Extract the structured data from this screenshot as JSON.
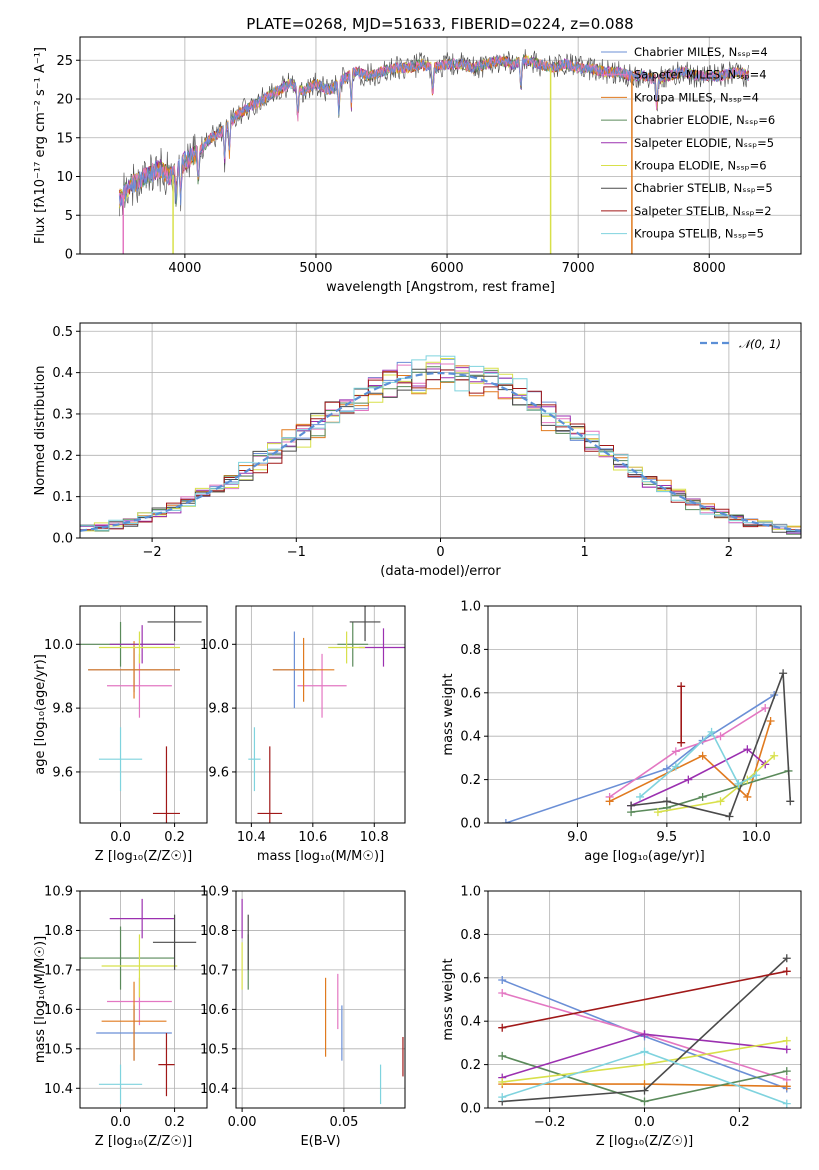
{
  "figure": {
    "title": "PLATE=0268, MJD=51633, FIBERID=0224, z=0.088"
  },
  "colors": {
    "chabrier_miles": "#6b8fd6",
    "salpeter_miles": "#e377c2",
    "kroupa_miles": "#e07a1f",
    "chabrier_elodie": "#5a8a5a",
    "salpeter_elodie": "#9b30b0",
    "kroupa_elodie": "#d8e04a",
    "chabrier_stelib": "#4a4a4a",
    "salpeter_stelib": "#a01818",
    "kroupa_stelib": "#7fd3de",
    "normal": "#5b8fd6"
  },
  "chart_data": [
    {
      "id": "spectrum",
      "type": "line",
      "xlabel": "wavelength [Angstrom, rest frame]",
      "ylabel": "Flux [fλ10⁻¹⁷ erg cm⁻² s⁻¹ A⁻¹]",
      "xlim": [
        3200,
        8700
      ],
      "ylim": [
        0,
        28
      ],
      "xticks": [
        "4000",
        "5000",
        "6000",
        "7000",
        "8000"
      ],
      "xtick_values": [
        4000,
        5000,
        6000,
        7000,
        8000
      ],
      "yticks": [
        "0",
        "5",
        "10",
        "15",
        "20",
        "25"
      ],
      "ytick_values": [
        0,
        5,
        10,
        15,
        20,
        25
      ],
      "legend_position": "top-right",
      "legend": [
        "Chabrier MILES, Nₛₛₚ=4",
        "Salpeter MILES, Nₛₛₚ=4",
        "Kroupa MILES, Nₛₛₚ=4",
        "Chabrier ELODIE, Nₛₛₚ=6",
        "Salpeter ELODIE, Nₛₛₚ=5",
        "Kroupa ELODIE, Nₛₛₚ=6",
        "Chabrier STELIB, Nₛₛₚ=5",
        "Salpeter STELIB, Nₛₛₚ=2",
        "Kroupa STELIB, Nₛₛₚ=5"
      ],
      "continuum": [
        [
          3500,
          7
        ],
        [
          3600,
          9
        ],
        [
          3700,
          10
        ],
        [
          3800,
          11
        ],
        [
          3900,
          10
        ],
        [
          4000,
          12
        ],
        [
          4100,
          13
        ],
        [
          4200,
          15
        ],
        [
          4300,
          16
        ],
        [
          4400,
          18
        ],
        [
          4500,
          19
        ],
        [
          4600,
          20
        ],
        [
          4700,
          21
        ],
        [
          4800,
          22
        ],
        [
          4900,
          21
        ],
        [
          5000,
          22
        ],
        [
          5100,
          21
        ],
        [
          5200,
          22.5
        ],
        [
          5300,
          23.5
        ],
        [
          5400,
          23
        ],
        [
          5500,
          23.5
        ],
        [
          5600,
          24
        ],
        [
          5700,
          24
        ],
        [
          5800,
          24.5
        ],
        [
          5900,
          24
        ],
        [
          6000,
          24.5
        ],
        [
          6100,
          24.5
        ],
        [
          6200,
          24
        ],
        [
          6300,
          24.5
        ],
        [
          6400,
          25
        ],
        [
          6500,
          24.5
        ],
        [
          6600,
          25
        ],
        [
          6700,
          24.5
        ],
        [
          6800,
          24
        ],
        [
          6900,
          24.5
        ],
        [
          7000,
          24
        ],
        [
          7100,
          24
        ],
        [
          7200,
          23.5
        ],
        [
          7300,
          23.5
        ],
        [
          7400,
          23
        ],
        [
          7500,
          23
        ],
        [
          7600,
          22.5
        ],
        [
          7700,
          23
        ],
        [
          7800,
          23.5
        ],
        [
          7900,
          23
        ],
        [
          8000,
          23
        ],
        [
          8100,
          23
        ],
        [
          8200,
          23.5
        ],
        [
          8300,
          23
        ]
      ],
      "spikes": [
        {
          "x": 3530,
          "color": "salpeter_miles"
        },
        {
          "x": 3910,
          "color": "kroupa_elodie"
        },
        {
          "x": 6790,
          "color": "kroupa_elodie"
        },
        {
          "x": 7410,
          "color": "kroupa_miles"
        }
      ]
    },
    {
      "id": "residuals",
      "type": "histogram",
      "xlabel": "(data-model)/error",
      "ylabel": "Normed distribution",
      "xlim": [
        -2.5,
        2.5
      ],
      "ylim": [
        0,
        0.52
      ],
      "xticks": [
        "−2",
        "−1",
        "0",
        "1",
        "2"
      ],
      "xtick_values": [
        -2,
        -1,
        0,
        1,
        2
      ],
      "yticks": [
        "0.0",
        "0.1",
        "0.2",
        "0.3",
        "0.4",
        "0.5"
      ],
      "ytick_values": [
        0,
        0.1,
        0.2,
        0.3,
        0.4,
        0.5
      ],
      "legend_position": "top-right",
      "legend": [
        "𝒩(0, 1)"
      ],
      "bin_width": 0.1,
      "note": "nine step histograms approximating N(0,1) with ~10% noise"
    },
    {
      "id": "age-vs-Z",
      "type": "scatter",
      "xlabel": "Z [log₁₀(Z/Z☉)]",
      "ylabel": "age  [log₁₀(age/yr)]",
      "xlim": [
        -0.15,
        0.32
      ],
      "ylim": [
        9.44,
        10.12
      ],
      "xticks": [
        "0.0",
        "0.2"
      ],
      "xtick_values": [
        0.0,
        0.2
      ],
      "yticks": [
        "9.6",
        "9.8",
        "10.0"
      ],
      "ytick_values": [
        9.6,
        9.8,
        10.0
      ],
      "points": [
        {
          "model": "chabrier_miles",
          "x": 0.05,
          "y": 9.92,
          "xerr": 0.17,
          "yerr": 0.07
        },
        {
          "model": "salpeter_miles",
          "x": 0.07,
          "y": 9.87,
          "xerr": 0.12,
          "yerr": 0.1
        },
        {
          "model": "kroupa_miles",
          "x": 0.05,
          "y": 9.92,
          "xerr": 0.17,
          "yerr": 0.09
        },
        {
          "model": "chabrier_elodie",
          "x": 0.0,
          "y": 10.0,
          "xerr": 0.2,
          "yerr": 0.07
        },
        {
          "model": "salpeter_elodie",
          "x": 0.08,
          "y": 10.0,
          "xerr": 0.12,
          "yerr": 0.06
        },
        {
          "model": "kroupa_elodie",
          "x": 0.07,
          "y": 9.99,
          "xerr": 0.15,
          "yerr": 0.05
        },
        {
          "model": "chabrier_stelib",
          "x": 0.2,
          "y": 10.07,
          "xerr": 0.1,
          "yerr": 0.06
        },
        {
          "model": "salpeter_stelib",
          "x": 0.17,
          "y": 9.47,
          "xerr": 0.05,
          "yerr": 0.21
        },
        {
          "model": "kroupa_stelib",
          "x": 0.0,
          "y": 9.64,
          "xerr": 0.08,
          "yerr": 0.1
        }
      ]
    },
    {
      "id": "age-vs-mass",
      "type": "scatter",
      "xlabel": "mass [log₁₀(M/M☉)]",
      "ylabel": "",
      "xlim": [
        10.35,
        10.9
      ],
      "ylim": [
        9.44,
        10.12
      ],
      "xticks": [
        "10.4",
        "10.6",
        "10.8"
      ],
      "xtick_values": [
        10.4,
        10.6,
        10.8
      ],
      "yticks": [
        "9.6",
        "9.8",
        "10.0"
      ],
      "ytick_values": [
        9.6,
        9.8,
        10.0
      ],
      "points": [
        {
          "model": "chabrier_miles",
          "x": 10.54,
          "y": 9.92,
          "xerr": 0.07,
          "yerr": 0.12
        },
        {
          "model": "salpeter_miles",
          "x": 10.63,
          "y": 9.87,
          "xerr": 0.08,
          "yerr": 0.1
        },
        {
          "model": "kroupa_miles",
          "x": 10.57,
          "y": 9.92,
          "xerr": 0.1,
          "yerr": 0.1
        },
        {
          "model": "chabrier_elodie",
          "x": 10.73,
          "y": 10.0,
          "xerr": 0.05,
          "yerr": 0.07
        },
        {
          "model": "salpeter_elodie",
          "x": 10.83,
          "y": 9.99,
          "xerr": 0.08,
          "yerr": 0.06
        },
        {
          "model": "kroupa_elodie",
          "x": 10.71,
          "y": 9.99,
          "xerr": 0.06,
          "yerr": 0.05
        },
        {
          "model": "chabrier_stelib",
          "x": 10.77,
          "y": 10.07,
          "xerr": 0.05,
          "yerr": 0.06
        },
        {
          "model": "salpeter_stelib",
          "x": 10.46,
          "y": 9.47,
          "xerr": 0.04,
          "yerr": 0.21
        },
        {
          "model": "kroupa_stelib",
          "x": 10.41,
          "y": 9.64,
          "xerr": 0.02,
          "yerr": 0.1
        }
      ]
    },
    {
      "id": "mass-weight-vs-age",
      "type": "line",
      "xlabel": "age  [log₁₀(age/yr)]",
      "ylabel": "mass weight",
      "xlim": [
        8.5,
        10.25
      ],
      "ylim": [
        0,
        1
      ],
      "xticks": [
        "9.0",
        "9.5",
        "10.0"
      ],
      "xtick_values": [
        9.0,
        9.5,
        10.0
      ],
      "yticks": [
        "0.0",
        "0.2",
        "0.4",
        "0.6",
        "0.8",
        "1.0"
      ],
      "ytick_values": [
        0,
        0.2,
        0.4,
        0.6,
        0.8,
        1.0
      ],
      "series": [
        {
          "model": "chabrier_miles",
          "x": [
            8.6,
            9.5,
            9.7,
            10.1
          ],
          "y": [
            0.0,
            0.25,
            0.38,
            0.59
          ]
        },
        {
          "model": "salpeter_miles",
          "x": [
            9.18,
            9.55,
            9.8,
            10.05
          ],
          "y": [
            0.12,
            0.33,
            0.4,
            0.53
          ]
        },
        {
          "model": "kroupa_miles",
          "x": [
            9.18,
            9.7,
            9.95,
            10.08
          ],
          "y": [
            0.1,
            0.31,
            0.12,
            0.47
          ]
        },
        {
          "model": "chabrier_elodie",
          "x": [
            9.3,
            9.5,
            9.7,
            9.9,
            10.18
          ],
          "y": [
            0.05,
            0.07,
            0.12,
            0.17,
            0.24
          ]
        },
        {
          "model": "salpeter_elodie",
          "x": [
            9.3,
            9.62,
            9.95,
            10.05
          ],
          "y": [
            0.08,
            0.2,
            0.34,
            0.27
          ]
        },
        {
          "model": "kroupa_elodie",
          "x": [
            9.45,
            9.8,
            9.95,
            10.1
          ],
          "y": [
            0.05,
            0.1,
            0.2,
            0.31
          ]
        },
        {
          "model": "chabrier_stelib",
          "x": [
            9.3,
            9.5,
            9.85,
            10.15,
            10.19
          ],
          "y": [
            0.08,
            0.1,
            0.03,
            0.69,
            0.1
          ]
        },
        {
          "model": "salpeter_stelib",
          "x": [
            9.58,
            9.58
          ],
          "y": [
            0.63,
            0.37
          ]
        },
        {
          "model": "kroupa_stelib",
          "x": [
            9.35,
            9.55,
            9.75,
            9.9,
            10.0
          ],
          "y": [
            0.12,
            0.26,
            0.42,
            0.18,
            0.22
          ]
        }
      ]
    },
    {
      "id": "mass-vs-Z",
      "type": "scatter",
      "xlabel": "Z [log₁₀(Z/Z☉)]",
      "ylabel": "mass [log₁₀(M/M☉)]",
      "xlim": [
        -0.15,
        0.32
      ],
      "ylim": [
        10.35,
        10.9
      ],
      "xticks": [
        "0.0",
        "0.2"
      ],
      "xtick_values": [
        0.0,
        0.2
      ],
      "yticks": [
        "10.4",
        "10.5",
        "10.6",
        "10.7",
        "10.8",
        "10.9"
      ],
      "ytick_values": [
        10.4,
        10.5,
        10.6,
        10.7,
        10.8,
        10.9
      ],
      "points": [
        {
          "model": "chabrier_miles",
          "x": 0.05,
          "y": 10.54,
          "xerr": 0.14,
          "yerr": 0.07
        },
        {
          "model": "salpeter_miles",
          "x": 0.07,
          "y": 10.62,
          "xerr": 0.12,
          "yerr": 0.06
        },
        {
          "model": "kroupa_miles",
          "x": 0.05,
          "y": 10.57,
          "xerr": 0.12,
          "yerr": 0.1
        },
        {
          "model": "chabrier_elodie",
          "x": 0.0,
          "y": 10.73,
          "xerr": 0.2,
          "yerr": 0.08
        },
        {
          "model": "salpeter_elodie",
          "x": 0.08,
          "y": 10.83,
          "xerr": 0.12,
          "yerr": 0.05
        },
        {
          "model": "kroupa_elodie",
          "x": 0.07,
          "y": 10.71,
          "xerr": 0.14,
          "yerr": 0.08
        },
        {
          "model": "chabrier_stelib",
          "x": 0.2,
          "y": 10.77,
          "xerr": 0.08,
          "yerr": 0.07
        },
        {
          "model": "salpeter_stelib",
          "x": 0.17,
          "y": 10.46,
          "xerr": 0.03,
          "yerr": 0.08
        },
        {
          "model": "kroupa_stelib",
          "x": 0.0,
          "y": 10.41,
          "xerr": 0.08,
          "yerr": 0.05
        }
      ]
    },
    {
      "id": "mass-vs-ebv",
      "type": "scatter",
      "xlabel": "E(B-V)",
      "ylabel": "",
      "xlim": [
        -0.003,
        0.08
      ],
      "ylim": [
        10.35,
        10.9
      ],
      "xticks": [
        "0.00",
        "0.05"
      ],
      "xtick_values": [
        0.0,
        0.05
      ],
      "yticks": [
        "10.4",
        "10.5",
        "10.6",
        "10.7",
        "10.8",
        "10.9"
      ],
      "ytick_values": [
        10.4,
        10.5,
        10.6,
        10.7,
        10.8,
        10.9
      ],
      "points": [
        {
          "model": "chabrier_miles",
          "x": 0.049,
          "y": 10.54,
          "yerr": 0.07
        },
        {
          "model": "salpeter_miles",
          "x": 0.047,
          "y": 10.62,
          "yerr": 0.07
        },
        {
          "model": "kroupa_miles",
          "x": 0.041,
          "y": 10.58,
          "yerr": 0.1
        },
        {
          "model": "chabrier_elodie",
          "x": 0.003,
          "y": 10.72,
          "yerr": 0.07
        },
        {
          "model": "salpeter_elodie",
          "x": 0.0,
          "y": 10.83,
          "yerr": 0.05
        },
        {
          "model": "kroupa_elodie",
          "x": 0.0,
          "y": 10.71,
          "yerr": 0.06
        },
        {
          "model": "chabrier_stelib",
          "x": 0.003,
          "y": 10.77,
          "yerr": 0.07
        },
        {
          "model": "salpeter_stelib",
          "x": 0.079,
          "y": 10.48,
          "yerr": 0.05
        },
        {
          "model": "kroupa_stelib",
          "x": 0.068,
          "y": 10.41,
          "yerr": 0.05
        }
      ]
    },
    {
      "id": "mass-weight-vs-Z",
      "type": "line",
      "xlabel": "Z [log₁₀(Z/Z☉)]",
      "ylabel": "mass weight",
      "xlim": [
        -0.33,
        0.33
      ],
      "ylim": [
        0,
        1
      ],
      "xticks": [
        "−0.2",
        "0.0",
        "0.2"
      ],
      "xtick_values": [
        -0.2,
        0.0,
        0.2
      ],
      "yticks": [
        "0.0",
        "0.2",
        "0.4",
        "0.6",
        "0.8",
        "1.0"
      ],
      "ytick_values": [
        0,
        0.2,
        0.4,
        0.6,
        0.8,
        1.0
      ],
      "series": [
        {
          "model": "chabrier_miles",
          "x": [
            -0.3,
            0.0,
            0.3
          ],
          "y": [
            0.59,
            0.33,
            0.09
          ]
        },
        {
          "model": "salpeter_miles",
          "x": [
            -0.3,
            0.0,
            0.3
          ],
          "y": [
            0.53,
            0.34,
            0.13
          ]
        },
        {
          "model": "kroupa_miles",
          "x": [
            -0.3,
            0.0,
            0.3
          ],
          "y": [
            0.11,
            0.11,
            0.1
          ]
        },
        {
          "model": "chabrier_elodie",
          "x": [
            -0.3,
            0.0,
            0.3
          ],
          "y": [
            0.24,
            0.03,
            0.17
          ]
        },
        {
          "model": "salpeter_elodie",
          "x": [
            -0.3,
            0.0,
            0.3
          ],
          "y": [
            0.14,
            0.34,
            0.27
          ]
        },
        {
          "model": "kroupa_elodie",
          "x": [
            -0.3,
            0.0,
            0.3
          ],
          "y": [
            0.12,
            0.2,
            0.31
          ]
        },
        {
          "model": "chabrier_stelib",
          "x": [
            -0.3,
            0.0,
            0.3
          ],
          "y": [
            0.03,
            0.08,
            0.69
          ]
        },
        {
          "model": "salpeter_stelib",
          "x": [
            -0.3,
            0.3
          ],
          "y": [
            0.37,
            0.63
          ]
        },
        {
          "model": "kroupa_stelib",
          "x": [
            -0.3,
            0.0,
            0.3
          ],
          "y": [
            0.05,
            0.26,
            0.02
          ]
        }
      ]
    }
  ]
}
